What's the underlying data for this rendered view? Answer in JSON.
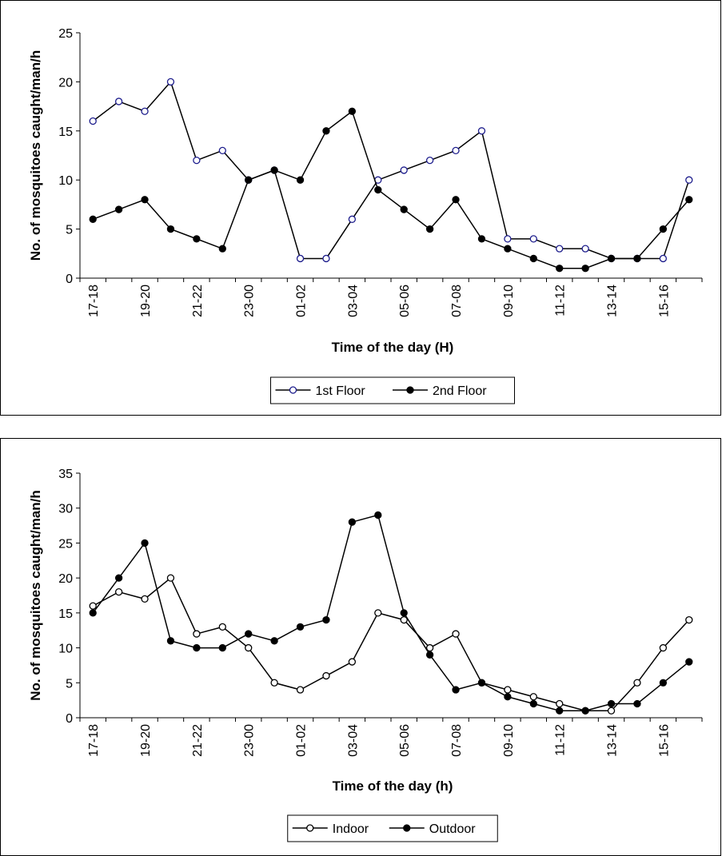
{
  "chart_data": [
    {
      "type": "line",
      "x_label": "Time of the day (H)",
      "y_label": "No. of mosquitoes caught/man/h",
      "categories": [
        "17-18",
        null,
        "19-20",
        null,
        "21-22",
        null,
        "23-00",
        null,
        "01-02",
        null,
        "03-04",
        null,
        "05-06",
        null,
        "07-08",
        null,
        "09-10",
        null,
        "11-12",
        null,
        "13-14",
        null,
        "15-16",
        null
      ],
      "series": [
        {
          "name": "1st Floor",
          "color": "#1c1c8c",
          "marker": "open",
          "values": [
            16,
            18,
            17,
            20,
            12,
            13,
            10,
            11,
            2,
            2,
            6,
            10,
            11,
            12,
            13,
            15,
            4,
            4,
            3,
            3,
            2,
            2,
            2,
            10
          ]
        },
        {
          "name": "2nd Floor",
          "color": "#000000",
          "marker": "filled",
          "values": [
            6,
            7,
            8,
            5,
            4,
            3,
            10,
            11,
            10,
            15,
            17,
            9,
            7,
            5,
            8,
            4,
            3,
            2,
            1,
            1,
            2,
            2,
            5,
            8
          ]
        }
      ],
      "ylim": [
        0,
        25
      ],
      "yticks": [
        0,
        5,
        10,
        15,
        20,
        25
      ],
      "grid": false,
      "legend": "bottom"
    },
    {
      "type": "line",
      "x_label": "Time of the day (h)",
      "y_label": "No. of mosquitoes caught/man/h",
      "categories": [
        "17-18",
        null,
        "19-20",
        null,
        "21-22",
        null,
        "23-00",
        null,
        "01-02",
        null,
        "03-04",
        null,
        "05-06",
        null,
        "07-08",
        null,
        "09-10",
        null,
        "11-12",
        null,
        "13-14",
        null,
        "15-16",
        null
      ],
      "series": [
        {
          "name": "Indoor",
          "color": "#000000",
          "marker": "open",
          "values": [
            16,
            18,
            17,
            20,
            12,
            13,
            10,
            5,
            4,
            6,
            8,
            15,
            14,
            10,
            12,
            5,
            4,
            3,
            2,
            1,
            1,
            5,
            10,
            14
          ]
        },
        {
          "name": "Outdoor",
          "color": "#000000",
          "marker": "filled",
          "values": [
            15,
            20,
            25,
            11,
            10,
            10,
            12,
            11,
            13,
            14,
            28,
            29,
            15,
            9,
            4,
            5,
            3,
            2,
            1,
            1,
            2,
            2,
            5,
            8
          ]
        }
      ],
      "ylim": [
        0,
        35
      ],
      "yticks": [
        0,
        5,
        10,
        15,
        20,
        25,
        30,
        35
      ],
      "grid": false,
      "legend": "bottom"
    }
  ]
}
